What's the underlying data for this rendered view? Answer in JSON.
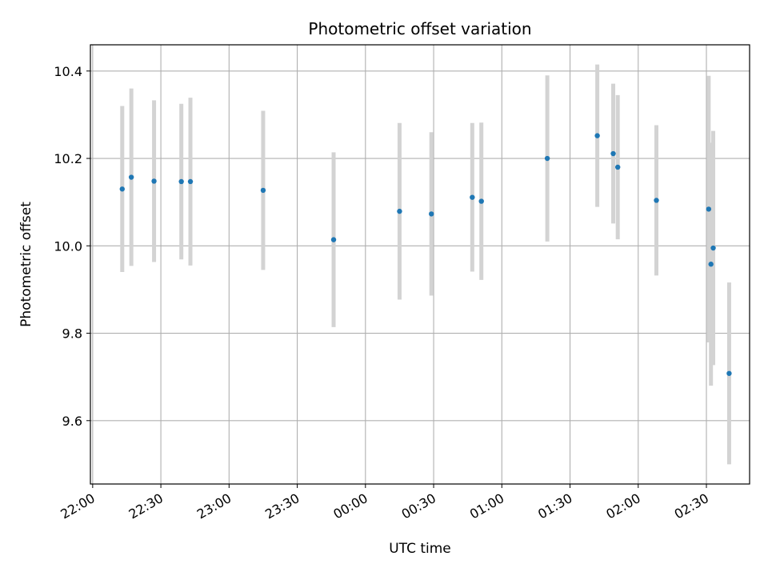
{
  "chart_data": {
    "type": "scatter",
    "title": "Photometric offset variation",
    "xlabel": "UTC time",
    "ylabel": "Photometric offset",
    "x_axis_type": "time",
    "xlim": [
      "21:59",
      "02:49"
    ],
    "ylim": [
      9.455,
      10.46
    ],
    "grid": true,
    "x_ticks": [
      "22:00",
      "22:30",
      "23:00",
      "23:30",
      "00:00",
      "00:30",
      "01:00",
      "01:30",
      "02:00",
      "02:30"
    ],
    "y_ticks": [
      9.6,
      9.8,
      10.0,
      10.2,
      10.4
    ],
    "y_tick_labels": [
      "9.6",
      "9.8",
      "10.0",
      "10.2",
      "10.4"
    ],
    "colors": {
      "marker": "#1f77b4",
      "errorbar": "#d3d3d3",
      "grid": "#b0b0b0"
    },
    "points": [
      {
        "time": "22:13",
        "y": 10.13,
        "err": 0.19
      },
      {
        "time": "22:17",
        "y": 10.157,
        "err": 0.203
      },
      {
        "time": "22:27",
        "y": 10.148,
        "err": 0.185
      },
      {
        "time": "22:39",
        "y": 10.147,
        "err": 0.178
      },
      {
        "time": "22:43",
        "y": 10.147,
        "err": 0.192
      },
      {
        "time": "23:15",
        "y": 10.127,
        "err": 0.182
      },
      {
        "time": "23:46",
        "y": 10.014,
        "err": 0.2
      },
      {
        "time": "00:15",
        "y": 10.079,
        "err": 0.202
      },
      {
        "time": "00:29",
        "y": 10.073,
        "err": 0.187
      },
      {
        "time": "00:47",
        "y": 10.111,
        "err": 0.17
      },
      {
        "time": "00:51",
        "y": 10.102,
        "err": 0.18
      },
      {
        "time": "01:20",
        "y": 10.2,
        "err": 0.19
      },
      {
        "time": "01:42",
        "y": 10.252,
        "err": 0.163
      },
      {
        "time": "01:49",
        "y": 10.211,
        "err": 0.16
      },
      {
        "time": "01:51",
        "y": 10.18,
        "err": 0.165
      },
      {
        "time": "02:08",
        "y": 10.104,
        "err": 0.172
      },
      {
        "time": "02:31",
        "y": 10.084,
        "err": 0.305
      },
      {
        "time": "02:32",
        "y": 9.958,
        "err": 0.278
      },
      {
        "time": "02:33",
        "y": 9.995,
        "err": 0.268
      },
      {
        "time": "02:40",
        "y": 9.708,
        "err": 0.208
      }
    ]
  }
}
